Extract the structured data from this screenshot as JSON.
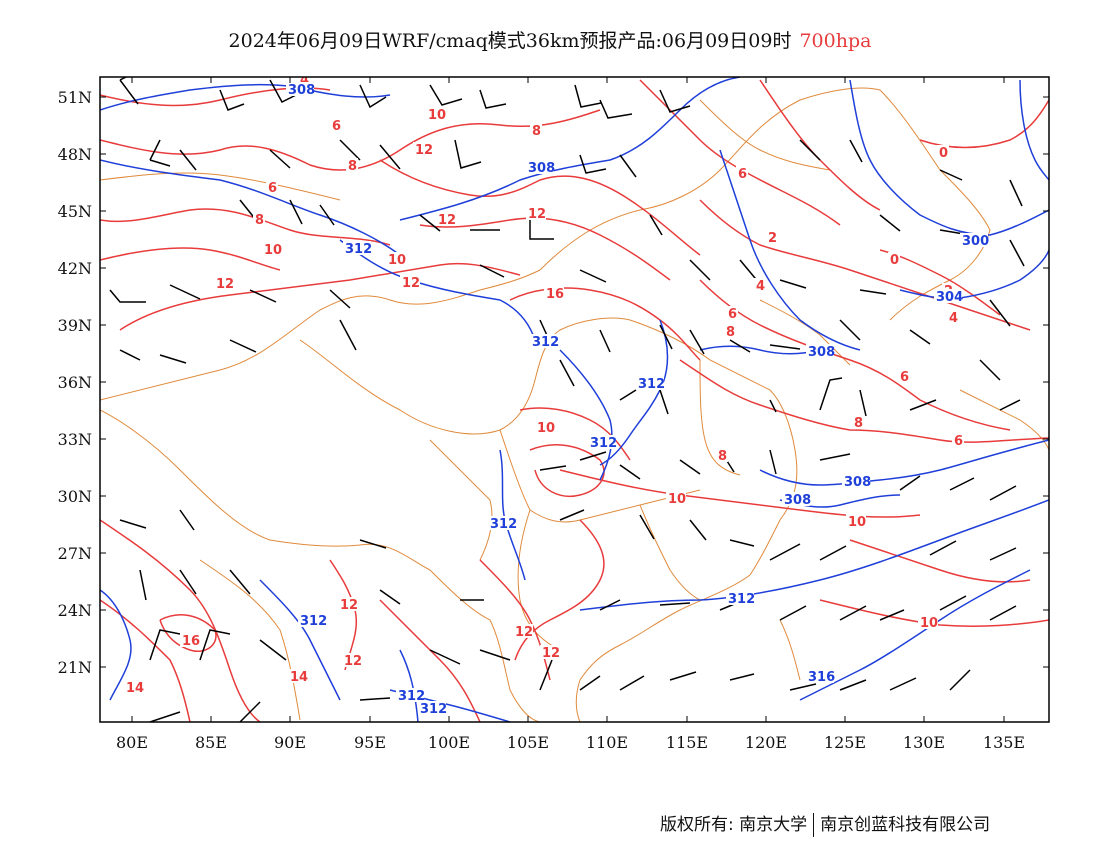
{
  "title": {
    "main": "2024年06月09日WRF/cmaq模式36km预报产品:06月09日09时",
    "level": "700hpa"
  },
  "axes": {
    "lat_ticks": [
      "51N",
      "48N",
      "45N",
      "42N",
      "39N",
      "36N",
      "33N",
      "30N",
      "27N",
      "24N",
      "21N"
    ],
    "lon_ticks": [
      "80E",
      "85E",
      "90E",
      "95E",
      "100E",
      "105E",
      "110E",
      "115E",
      "120E",
      "125E",
      "130E",
      "135E"
    ]
  },
  "colors": {
    "temperature": "#e83b3b",
    "geopotential": "#1f3fd9",
    "border": "#e08a3c",
    "wind": "#000000"
  },
  "contour_labels": {
    "temperature": [
      "4",
      "6",
      "10",
      "8",
      "12",
      "8",
      "6",
      "6",
      "8",
      "10",
      "12",
      "12",
      "10",
      "12",
      "12",
      "0",
      "2",
      "4",
      "6",
      "8",
      "0",
      "2",
      "4",
      "6",
      "8",
      "10",
      "10",
      "10",
      "8",
      "6",
      "12",
      "12",
      "16",
      "14",
      "14",
      "12",
      "12",
      "16",
      "10"
    ],
    "geopotential": [
      "308",
      "308",
      "312",
      "312",
      "312",
      "312",
      "312",
      "308",
      "308",
      "308",
      "312",
      "312",
      "312",
      "312",
      "316",
      "300",
      "304"
    ]
  },
  "footer": {
    "copyright": "版权所有: 南京大学",
    "company": "南京创蓝科技有限公司"
  }
}
